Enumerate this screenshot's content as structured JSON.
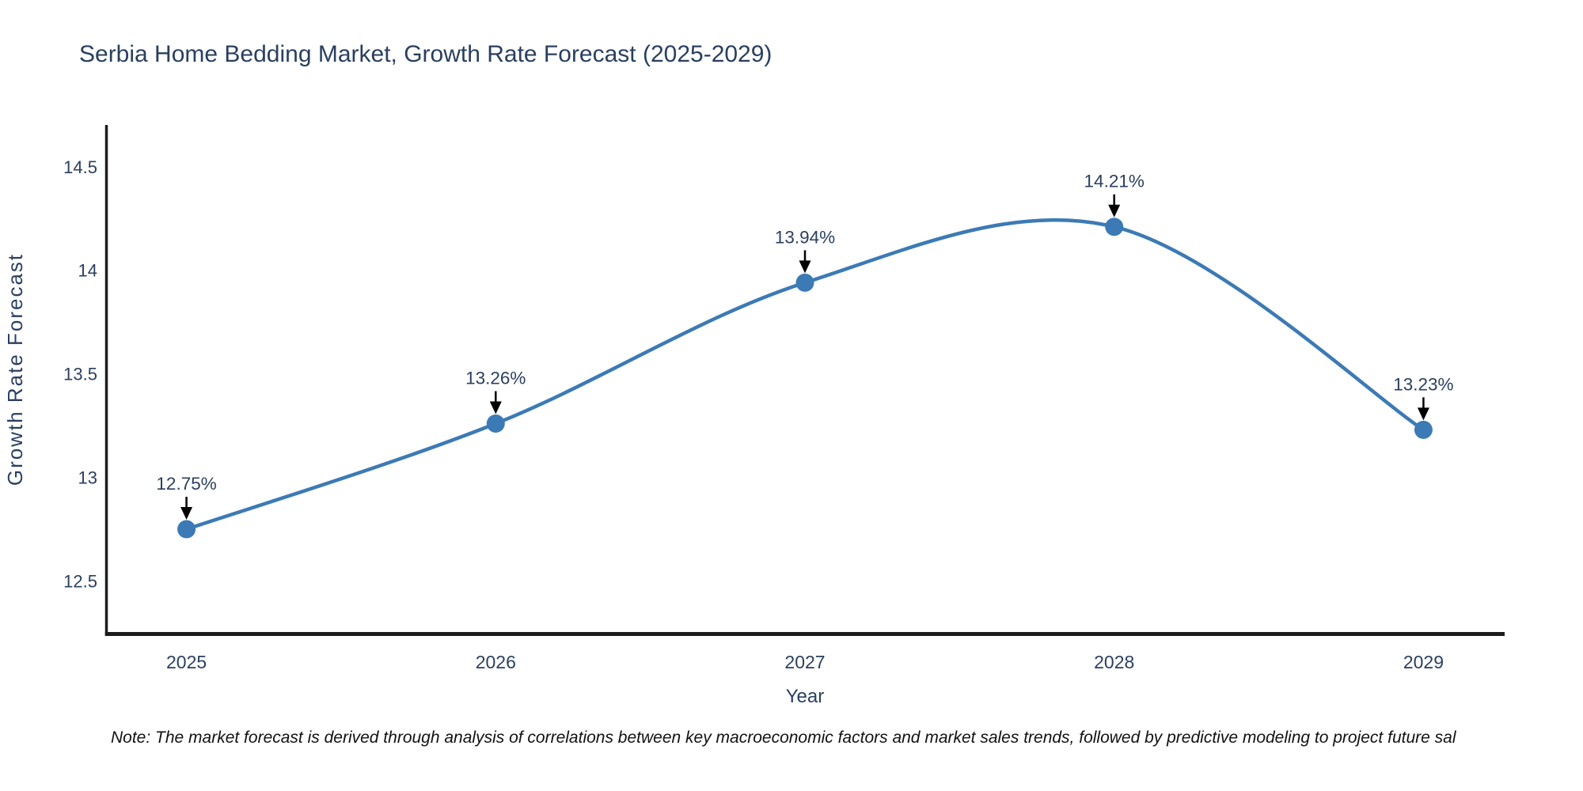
{
  "title": "Serbia Home Bedding Market, Growth Rate Forecast (2025-2029)",
  "note": "Note: The market forecast is derived through analysis of correlations between key macroeconomic factors and market sales trends, followed by predictive modeling to project future sal",
  "chart_data": {
    "type": "line",
    "title": "Serbia Home Bedding Market, Growth Rate Forecast (2025-2029)",
    "xlabel": "Year",
    "ylabel": "Growth Rate Forecast",
    "x": [
      2025,
      2026,
      2027,
      2028,
      2029
    ],
    "values": [
      12.75,
      13.26,
      13.94,
      14.21,
      13.23
    ],
    "point_labels": [
      "12.75%",
      "13.26%",
      "13.94%",
      "14.21%",
      "13.23%"
    ],
    "xticks": [
      "2025",
      "2026",
      "2027",
      "2028",
      "2029"
    ],
    "yticks": [
      12.5,
      13,
      13.5,
      14,
      14.5
    ],
    "ytick_labels": [
      "12.5",
      "13",
      "13.5",
      "14",
      "14.5"
    ],
    "xlim": [
      2024.74,
      2029.26
    ],
    "ylim": [
      12.25,
      14.69
    ],
    "line_shape": "spline",
    "grid": false,
    "legend": false,
    "colors": {
      "series": "#3c7ab5",
      "marker": "#3c7ab5",
      "axis": "#1c1c1c",
      "text": "#2a3f5f",
      "arrow": "#000000"
    }
  }
}
